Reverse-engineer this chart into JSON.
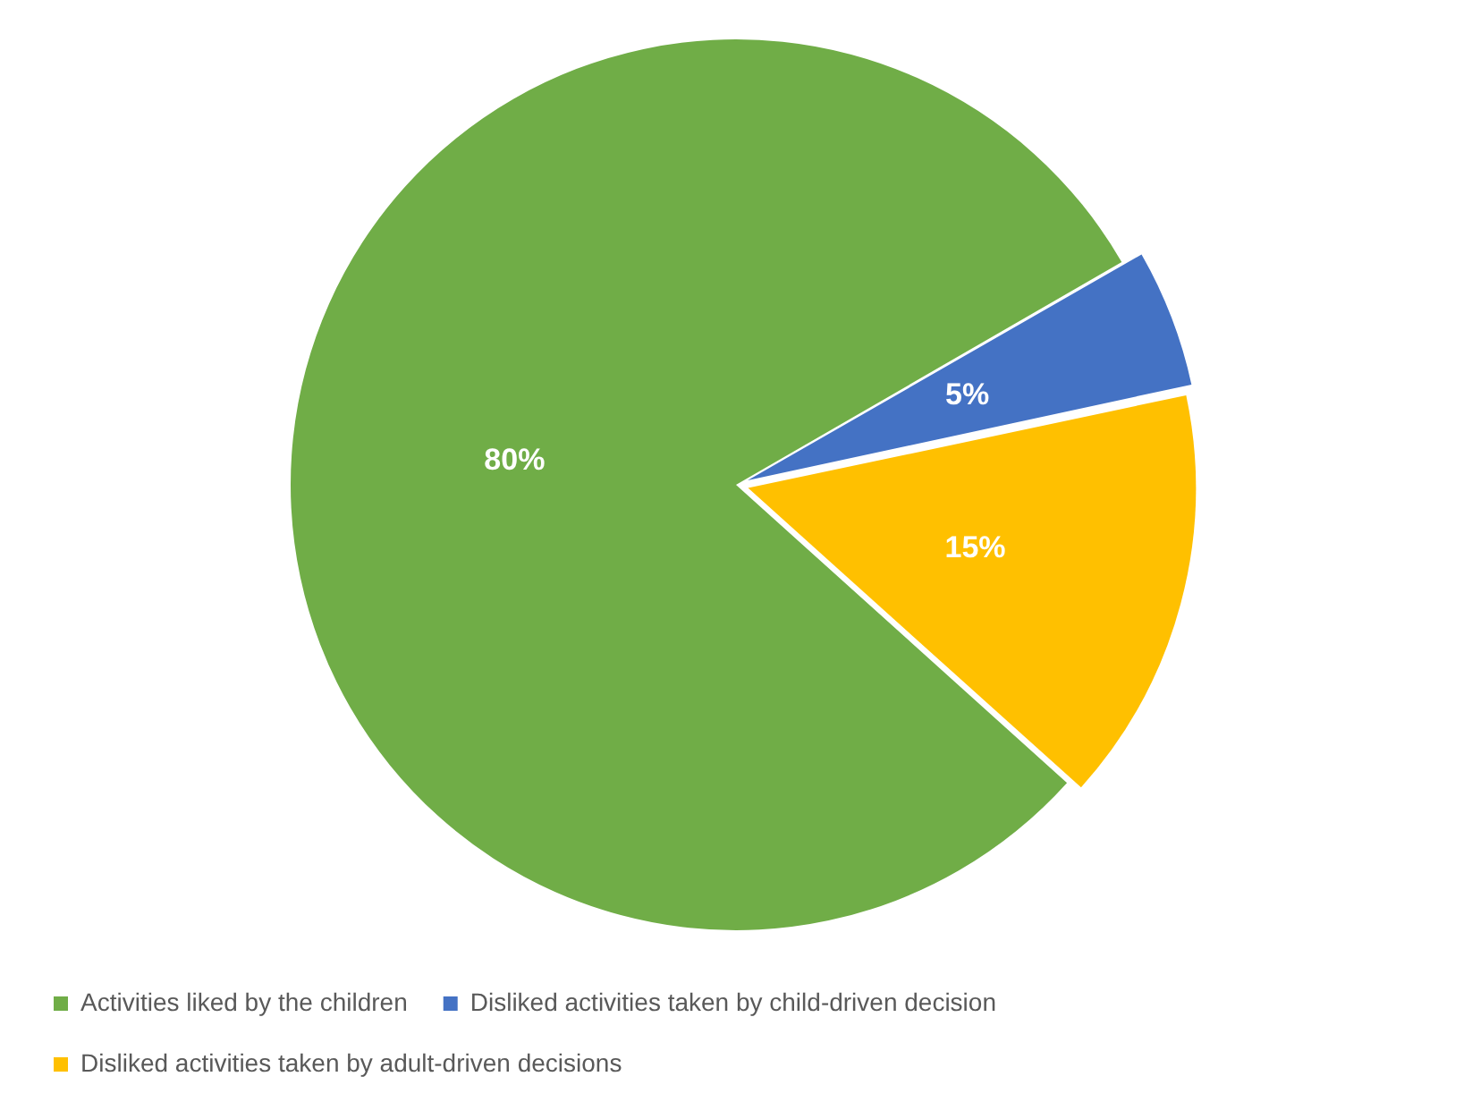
{
  "chart_data": {
    "type": "pie",
    "categories": [
      "Activities liked by the children",
      "Disliked activities taken by child-driven decision",
      "Disliked activities taken by adult-driven decisions"
    ],
    "values": [
      80,
      5,
      15
    ],
    "colors": [
      "#70ad47",
      "#4472c4",
      "#ffc000"
    ],
    "value_labels": [
      "80%",
      "5%",
      "15%"
    ],
    "legend": "bottom"
  }
}
